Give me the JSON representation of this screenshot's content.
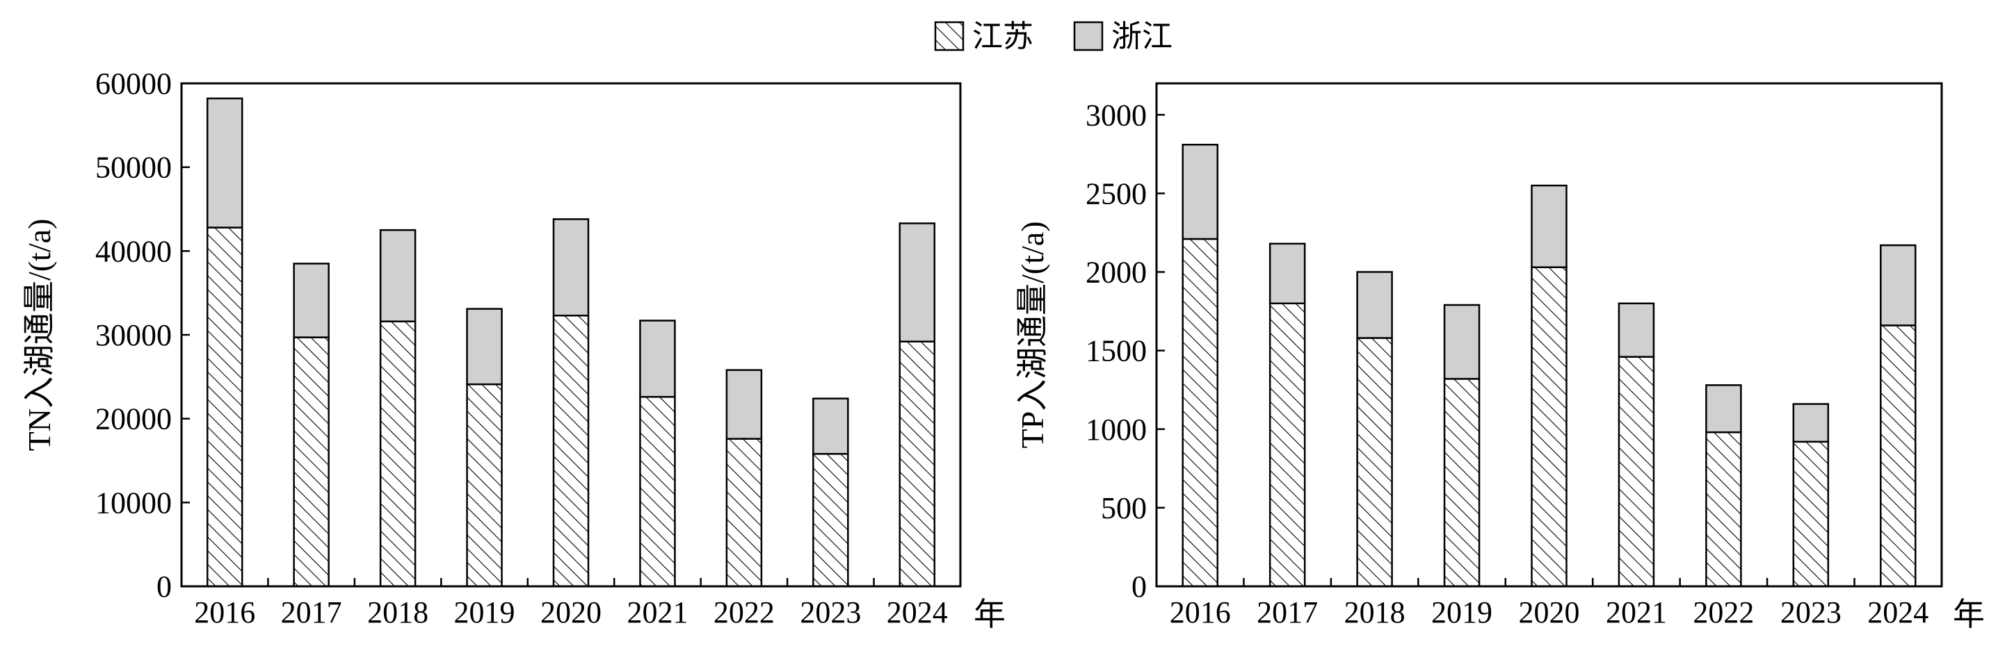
{
  "legend": [
    {
      "name": "江苏",
      "pattern": "hatch"
    },
    {
      "name": "浙江",
      "pattern": "solid",
      "color": "#d0d0d0"
    }
  ],
  "x_unit": "年",
  "colors": {
    "zhejiang_fill": "#d0d0d0",
    "jiangsu_fill": "#ffffff",
    "stroke": "#000000"
  },
  "chart_data": [
    {
      "type": "bar",
      "stacked": true,
      "ylabel": "TN入湖通量/(t/a)",
      "ylim": [
        0,
        60000
      ],
      "yticks": [
        0,
        10000,
        20000,
        30000,
        40000,
        50000,
        60000
      ],
      "categories": [
        "2016",
        "2017",
        "2018",
        "2019",
        "2020",
        "2021",
        "2022",
        "2023",
        "2024"
      ],
      "series": [
        {
          "name": "江苏",
          "values": [
            42800,
            29700,
            31600,
            24100,
            32300,
            22600,
            17600,
            15800,
            29200
          ]
        },
        {
          "name": "浙江",
          "values": [
            15400,
            8800,
            10900,
            9000,
            11500,
            9100,
            8200,
            6600,
            14100
          ]
        }
      ]
    },
    {
      "type": "bar",
      "stacked": true,
      "ylabel": "TP入湖通量/(t/a)",
      "ylim": [
        0,
        3200
      ],
      "yticks": [
        0,
        500,
        1000,
        1500,
        2000,
        2500,
        3000
      ],
      "categories": [
        "2016",
        "2017",
        "2018",
        "2019",
        "2020",
        "2021",
        "2022",
        "2023",
        "2024"
      ],
      "series": [
        {
          "name": "江苏",
          "values": [
            2210,
            1800,
            1580,
            1320,
            2030,
            1460,
            980,
            920,
            1660
          ]
        },
        {
          "name": "浙江",
          "values": [
            600,
            380,
            420,
            470,
            520,
            340,
            300,
            240,
            510
          ]
        }
      ]
    }
  ]
}
